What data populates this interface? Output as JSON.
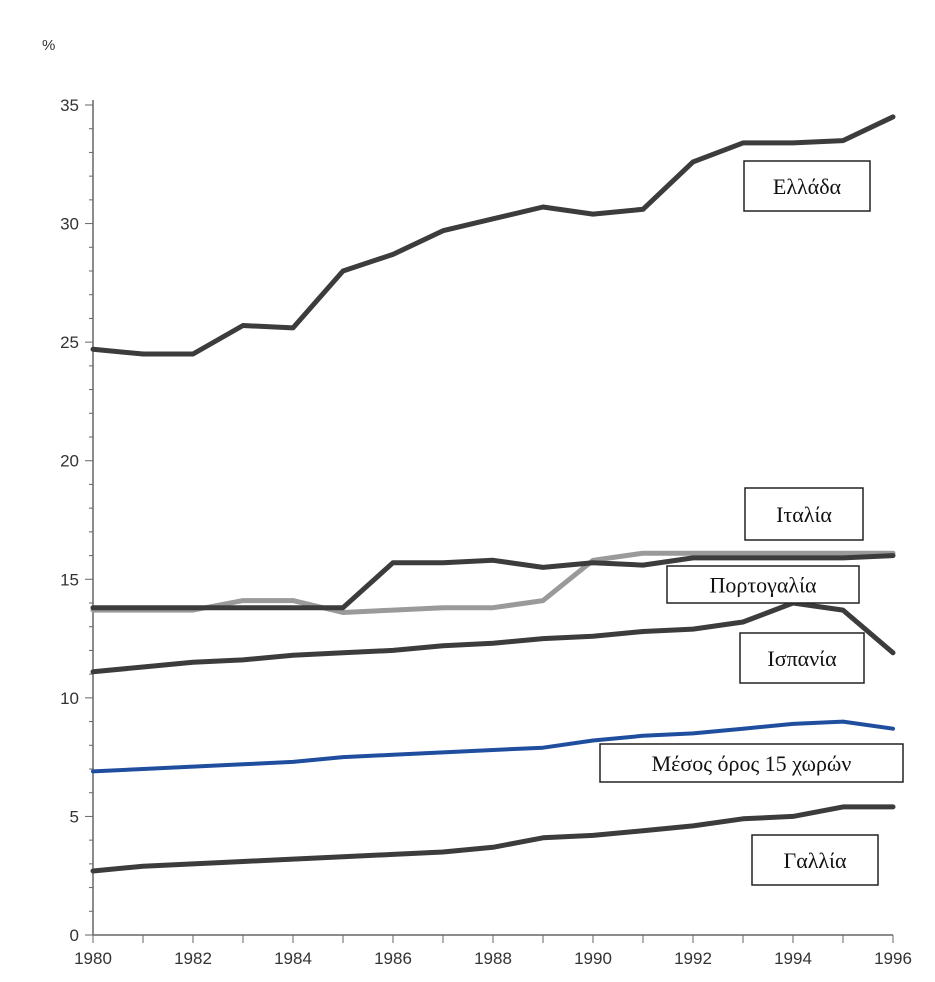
{
  "chart_data": {
    "type": "line",
    "y_unit": "%",
    "x": [
      1980,
      1981,
      1982,
      1983,
      1984,
      1985,
      1986,
      1987,
      1988,
      1989,
      1990,
      1991,
      1992,
      1993,
      1994,
      1995,
      1996
    ],
    "x_tick_labels": [
      "1980",
      "1982",
      "1984",
      "1986",
      "1988",
      "1990",
      "1992",
      "1994",
      "1996"
    ],
    "y_ticks": [
      0,
      5,
      10,
      15,
      20,
      25,
      30,
      35
    ],
    "xlim": [
      1980,
      1996
    ],
    "ylim": [
      0,
      35
    ],
    "grid": false,
    "series": [
      {
        "name": "Ελλάδα",
        "color": "#3c3c3c",
        "values": [
          24.7,
          24.5,
          24.5,
          25.7,
          25.6,
          28.0,
          28.7,
          29.7,
          30.2,
          30.7,
          30.4,
          30.6,
          32.6,
          33.4,
          33.4,
          33.5,
          34.5
        ]
      },
      {
        "name": "Ιταλία",
        "color": "#3c3c3c",
        "values": [
          13.8,
          13.8,
          13.8,
          13.8,
          13.8,
          13.8,
          15.7,
          15.7,
          15.8,
          15.5,
          15.7,
          15.6,
          15.9,
          15.9,
          15.9,
          15.9,
          16.0
        ]
      },
      {
        "name": "Πορτογαλία",
        "color": "#9a9a9a",
        "values": [
          13.7,
          13.7,
          13.7,
          14.1,
          14.1,
          13.6,
          13.7,
          13.8,
          13.8,
          14.1,
          15.8,
          16.1,
          16.1,
          16.1,
          16.1,
          16.1,
          16.1
        ]
      },
      {
        "name": "Ισπανία",
        "color": "#3c3c3c",
        "values": [
          11.1,
          11.3,
          11.5,
          11.6,
          11.8,
          11.9,
          12.0,
          12.2,
          12.3,
          12.5,
          12.6,
          12.8,
          12.9,
          13.2,
          14.0,
          13.7,
          11.9
        ]
      },
      {
        "name": "Μέσος όρος 15 χωρών",
        "color": "#1f4e9e",
        "values": [
          6.9,
          7.0,
          7.1,
          7.2,
          7.3,
          7.5,
          7.6,
          7.7,
          7.8,
          7.9,
          8.2,
          8.4,
          8.5,
          8.7,
          8.9,
          9.0,
          8.7
        ]
      },
      {
        "name": "Γαλλία",
        "color": "#3c3c3c",
        "values": [
          2.7,
          2.9,
          3.0,
          3.1,
          3.2,
          3.3,
          3.4,
          3.5,
          3.7,
          4.1,
          4.2,
          4.4,
          4.6,
          4.9,
          5.0,
          5.4,
          5.4
        ]
      }
    ]
  }
}
